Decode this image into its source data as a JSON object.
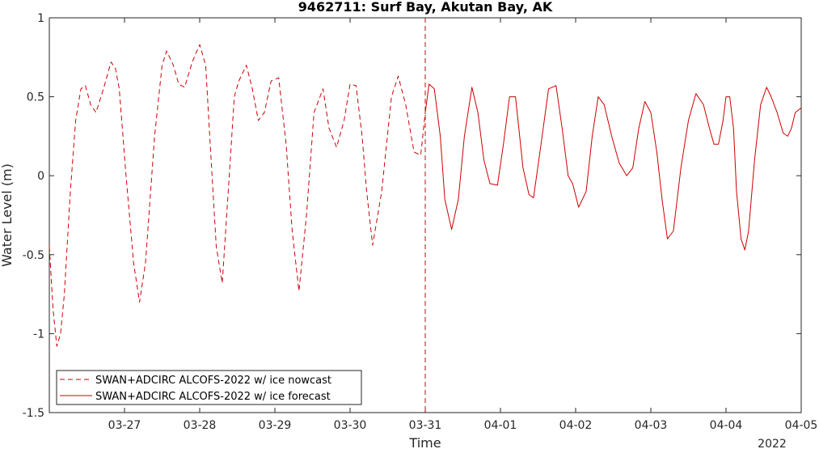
{
  "chart_data": {
    "type": "line",
    "title": "9462711: Surf Bay, Akutan Bay, AK",
    "xlabel": "Time",
    "ylabel": "Water Level (m)",
    "year_label": "2022",
    "ylim": [
      -1.5,
      1
    ],
    "yticks": [
      -1.5,
      -1,
      -0.5,
      0,
      0.5,
      1
    ],
    "ytick_labels": [
      "-1.5",
      "-1",
      "-0.5",
      "0",
      "0.5",
      "1"
    ],
    "xlim_days": [
      26.0,
      35.0
    ],
    "xticks_days": [
      27,
      28,
      29,
      30,
      31,
      32,
      33,
      34,
      35,
      36
    ],
    "xtick_labels": [
      "03-27",
      "03-28",
      "03-29",
      "03-30",
      "03-31",
      "04-01",
      "04-02",
      "04-03",
      "04-04",
      "04-05"
    ],
    "divider_day": 31,
    "grid": false,
    "legend_location": "bottom-left",
    "series": [
      {
        "name": "SWAN+ADCIRC ALCOFS-2022 w/ ice nowcast",
        "color": "#cc0000",
        "style": "dashed",
        "x": [
          26.0,
          26.05,
          26.1,
          26.15,
          26.2,
          26.28,
          26.35,
          26.42,
          26.48,
          26.55,
          26.62,
          26.72,
          26.82,
          26.88,
          26.93,
          27.02,
          27.12,
          27.2,
          27.28,
          27.4,
          27.5,
          27.56,
          27.65,
          27.72,
          27.8,
          27.9,
          28.0,
          28.08,
          28.14,
          28.22,
          28.3,
          28.4,
          28.46,
          28.52,
          28.62,
          28.7,
          28.78,
          28.86,
          28.95,
          29.05,
          29.15,
          29.23,
          29.32,
          29.42,
          29.52,
          29.64,
          29.72,
          29.82,
          29.92,
          30.0,
          30.08,
          30.16,
          30.22,
          30.3,
          30.42,
          30.55,
          30.64,
          30.74,
          30.85,
          30.94,
          31.0
        ],
        "y": [
          -0.45,
          -0.85,
          -1.08,
          -1.0,
          -0.75,
          -0.1,
          0.35,
          0.55,
          0.57,
          0.45,
          0.4,
          0.55,
          0.72,
          0.68,
          0.55,
          0.0,
          -0.55,
          -0.8,
          -0.55,
          0.25,
          0.7,
          0.79,
          0.7,
          0.58,
          0.56,
          0.72,
          0.83,
          0.7,
          0.2,
          -0.45,
          -0.68,
          0.05,
          0.5,
          0.6,
          0.7,
          0.55,
          0.35,
          0.4,
          0.6,
          0.62,
          0.2,
          -0.35,
          -0.73,
          -0.25,
          0.4,
          0.55,
          0.3,
          0.18,
          0.35,
          0.58,
          0.57,
          0.25,
          -0.1,
          -0.44,
          -0.1,
          0.5,
          0.63,
          0.45,
          0.15,
          0.13,
          0.4
        ]
      },
      {
        "name": "SWAN+ADCIRC ALCOFS-2022 w/ ice forecast",
        "color": "#cc0000",
        "style": "solid",
        "x": [
          31.0,
          31.05,
          31.12,
          31.2,
          31.26,
          31.35,
          31.44,
          31.52,
          31.62,
          31.7,
          31.78,
          31.86,
          31.96,
          32.04,
          32.12,
          32.2,
          32.3,
          32.38,
          32.44,
          32.54,
          32.64,
          32.74,
          32.82,
          32.9,
          32.96,
          33.04,
          33.14,
          33.22,
          33.3,
          33.38,
          33.48,
          33.58,
          33.68,
          33.76,
          33.84,
          33.92,
          34.0,
          34.08,
          34.15,
          34.22,
          34.3,
          34.4,
          34.5,
          34.6,
          34.7,
          34.78,
          34.84,
          34.9,
          34.96,
          35.0,
          35.05,
          35.1,
          35.14,
          35.2,
          35.25,
          35.3,
          35.38,
          35.46,
          35.54,
          35.6,
          35.68,
          35.76,
          35.82,
          35.87,
          35.92,
          36.0
        ],
        "y": [
          0.4,
          0.58,
          0.55,
          0.25,
          -0.15,
          -0.34,
          -0.15,
          0.25,
          0.56,
          0.4,
          0.1,
          -0.05,
          -0.06,
          0.2,
          0.5,
          0.5,
          0.05,
          -0.12,
          -0.14,
          0.2,
          0.55,
          0.57,
          0.3,
          0.0,
          -0.05,
          -0.2,
          -0.1,
          0.25,
          0.5,
          0.45,
          0.25,
          0.08,
          0.0,
          0.05,
          0.3,
          0.47,
          0.4,
          0.15,
          -0.15,
          -0.4,
          -0.35,
          0.05,
          0.35,
          0.52,
          0.45,
          0.3,
          0.2,
          0.2,
          0.35,
          0.5,
          0.5,
          0.3,
          -0.1,
          -0.4,
          -0.47,
          -0.35,
          0.1,
          0.45,
          0.56,
          0.5,
          0.4,
          0.27,
          0.25,
          0.3,
          0.4,
          0.43
        ]
      }
    ]
  }
}
